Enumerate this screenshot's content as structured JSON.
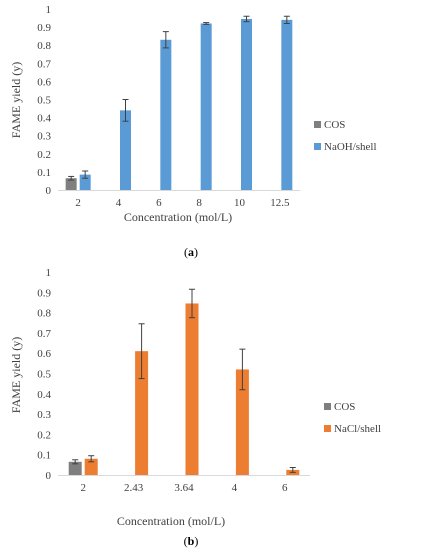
{
  "chart_data": [
    {
      "type": "bar",
      "panel_label": "(a)",
      "panel_letter": "a",
      "categories": [
        "2",
        "4",
        "6",
        "8",
        "10",
        "12.5"
      ],
      "series": [
        {
          "name": "COS",
          "color": "#7f7f7f",
          "values": [
            0.065,
            null,
            null,
            null,
            null,
            null
          ],
          "errors": [
            0.01,
            null,
            null,
            null,
            null,
            null
          ]
        },
        {
          "name": "NaOH/shell",
          "color": "#5b9bd5",
          "values": [
            0.085,
            0.44,
            0.83,
            0.92,
            0.945,
            0.94
          ],
          "errors": [
            0.02,
            0.06,
            0.045,
            0.005,
            0.015,
            0.02
          ]
        }
      ],
      "xlabel": "Concentration (mol/L)",
      "ylabel": "FAME yield (y)",
      "ylim": [
        0,
        1
      ],
      "yticks": [
        "0",
        "0.1",
        "0.2",
        "0.3",
        "0.4",
        "0.5",
        "0.6",
        "0.7",
        "0.8",
        "0.9",
        "1"
      ],
      "grid": false,
      "legend_position": "right"
    },
    {
      "type": "bar",
      "panel_label": "(b)",
      "panel_letter": "b",
      "categories": [
        "2",
        "2.43",
        "3.64",
        "4",
        "6"
      ],
      "series": [
        {
          "name": "COS",
          "color": "#7f7f7f",
          "values": [
            0.065,
            null,
            null,
            null,
            null
          ],
          "errors": [
            0.01,
            null,
            null,
            null,
            null
          ]
        },
        {
          "name": "NaCl/shell",
          "color": "#ed7d31",
          "values": [
            0.08,
            0.61,
            0.845,
            0.52,
            0.025
          ],
          "errors": [
            0.015,
            0.135,
            0.07,
            0.1,
            0.012
          ]
        }
      ],
      "xlabel": "Concentration (mol/L)",
      "ylabel": "FAME yield (y)",
      "ylim": [
        0,
        1
      ],
      "yticks": [
        "0",
        "0.1",
        "0.2",
        "0.3",
        "0.4",
        "0.5",
        "0.6",
        "0.7",
        "0.8",
        "0.9",
        "1"
      ],
      "grid": false,
      "legend_position": "right"
    }
  ]
}
